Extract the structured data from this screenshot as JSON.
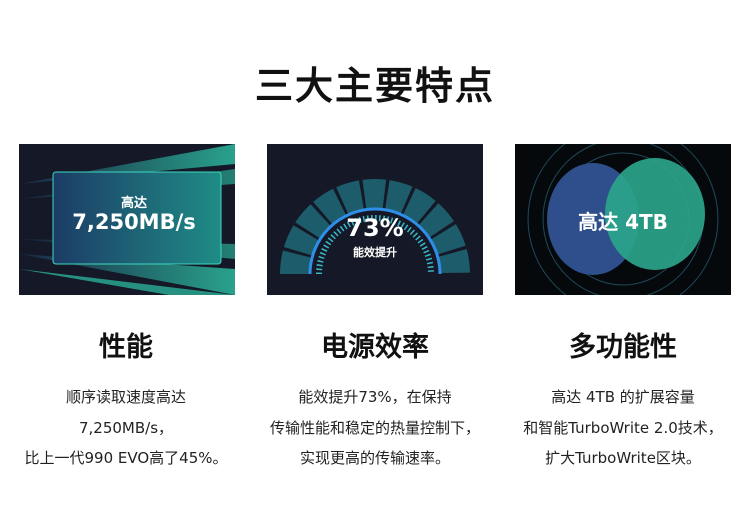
{
  "title": "三大主要特点",
  "features": [
    {
      "image": {
        "line1": "高达",
        "line2": "7,250MB/s"
      },
      "heading": "性能",
      "lines": [
        "顺序读取速度高达",
        "7,250MB/s，",
        "比上一代990 EVO高了45%。"
      ]
    },
    {
      "image": {
        "value": "73%",
        "label": "能效提升",
        "gauge_percent": 73
      },
      "heading": "电源效率",
      "lines": [
        "能效提升73%，在保持",
        "传输性能和稳定的热量控制下，",
        "实现更高的传输速率。"
      ]
    },
    {
      "image": {
        "line1": "高达 4TB"
      },
      "heading": "多功能性",
      "lines": [
        "高达 4TB 的扩展容量",
        "和智能TurboWrite 2.0技术，",
        "扩大TurboWrite区块。"
      ]
    }
  ],
  "colors": {
    "teal": "#2fb8a0",
    "navy": "#151827",
    "blue": "#2f6fd8"
  }
}
